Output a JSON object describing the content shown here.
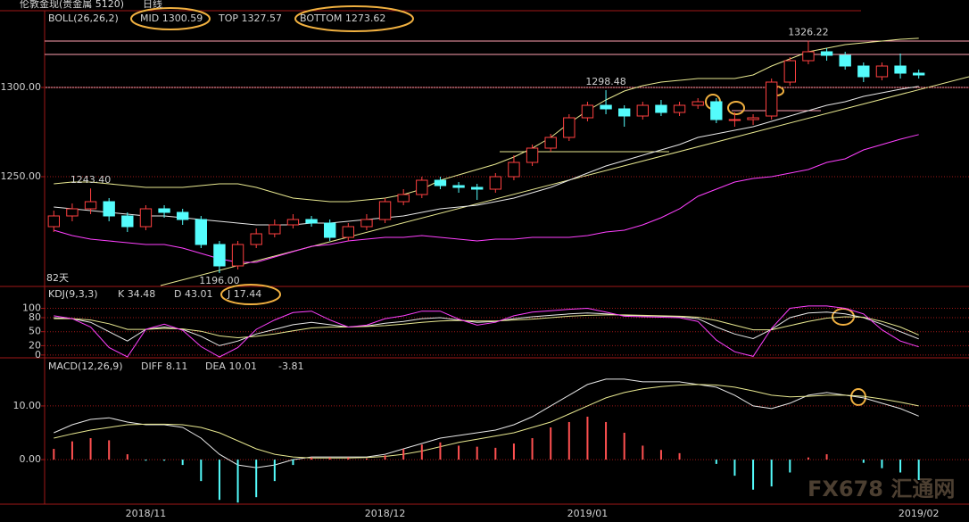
{
  "chart_data": [
    {
      "type": "candlestick",
      "title": "伦敦金现(贵金属 5120)",
      "period": "日线",
      "indicator": "BOLL(26,26,2)",
      "days_label": "82天",
      "categories": [
        null,
        null,
        null,
        null,
        null,
        "2018/11",
        null,
        null,
        null,
        null,
        null,
        null,
        null,
        null,
        null,
        null,
        null,
        null,
        "2018/12",
        null,
        null,
        null,
        null,
        null,
        null,
        null,
        null,
        null,
        null,
        "2019/01",
        null,
        null,
        null,
        null,
        null,
        null,
        null,
        null,
        null,
        null,
        null,
        null,
        null,
        null,
        null,
        null,
        null,
        "2019/02"
      ],
      "open": [
        1222,
        1228,
        1232,
        1236,
        1228,
        1222,
        1232,
        1230,
        1226,
        1212,
        1200,
        1212,
        1218,
        1223,
        1226,
        1224,
        1216,
        1222,
        1226,
        1236,
        1240,
        1248,
        1245,
        1244,
        1243,
        1250,
        1258,
        1266,
        1272,
        1283,
        1290,
        1288,
        1284,
        1290,
        1286,
        1290,
        1292,
        1282,
        1282,
        1284,
        1303,
        1315,
        1320,
        1318,
        1312,
        1306,
        1312,
        1308
      ],
      "high": [
        1231,
        1235,
        1243.4,
        1238,
        1230,
        1234,
        1234,
        1232,
        1228,
        1214,
        1214,
        1221,
        1226,
        1229,
        1228,
        1226,
        1224,
        1229,
        1238,
        1243,
        1250,
        1250,
        1247,
        1246,
        1252,
        1262,
        1268,
        1274,
        1285,
        1292,
        1298.48,
        1290,
        1292,
        1293,
        1292,
        1294,
        1294,
        1286,
        1285,
        1305,
        1317,
        1326.22,
        1322,
        1320,
        1314,
        1314,
        1319,
        1310
      ],
      "low": [
        1219,
        1225,
        1229,
        1225,
        1219,
        1220,
        1227,
        1223,
        1210,
        1196,
        1198,
        1210,
        1216,
        1221,
        1222,
        1214,
        1214,
        1220,
        1224,
        1234,
        1238,
        1243,
        1241,
        1237,
        1241,
        1248,
        1256,
        1264,
        1270,
        1281,
        1285,
        1278,
        1282,
        1284,
        1284,
        1288,
        1280,
        1278,
        1279,
        1282,
        1301,
        1313,
        1315,
        1310,
        1303,
        1304,
        1305,
        1305
      ],
      "close": [
        1228,
        1232,
        1236,
        1228,
        1222,
        1232,
        1230,
        1226,
        1212,
        1200,
        1212,
        1218,
        1223,
        1226,
        1224,
        1216,
        1222,
        1226,
        1236,
        1240,
        1248,
        1245,
        1244,
        1243,
        1250,
        1258,
        1266,
        1272,
        1283,
        1290,
        1288,
        1284,
        1290,
        1286,
        1290,
        1292,
        1282,
        1282,
        1283,
        1303,
        1315,
        1320,
        1318,
        1312,
        1306,
        1312,
        1308,
        1307
      ],
      "up_color": "#ff4040",
      "down_color": "#54fcfc",
      "extreme_labels": [
        "1326.22",
        "1298.48",
        "1243.40",
        "1196.00"
      ],
      "series": [
        {
          "name": "MID",
          "color": "#e8e8e8",
          "values": [
            1233,
            1232,
            1231,
            1230,
            1229,
            1228,
            1228,
            1227,
            1226,
            1225,
            1224,
            1223,
            1223,
            1223,
            1224,
            1224,
            1225,
            1226,
            1227,
            1228,
            1230,
            1232,
            1233,
            1234,
            1236,
            1238,
            1241,
            1244,
            1248,
            1252,
            1256,
            1259,
            1262,
            1265,
            1268,
            1272,
            1274,
            1276,
            1278,
            1281,
            1284,
            1287,
            1290,
            1292,
            1295,
            1297,
            1299,
            1300.59
          ]
        },
        {
          "name": "TOP",
          "color": "#e8e890",
          "values": [
            1246,
            1247,
            1247,
            1246,
            1245,
            1244,
            1244,
            1244,
            1245,
            1246,
            1246,
            1244,
            1241,
            1238,
            1237,
            1236,
            1236,
            1237,
            1238,
            1240,
            1243,
            1248,
            1251,
            1254,
            1257,
            1261,
            1266,
            1272,
            1280,
            1287,
            1293,
            1298,
            1301,
            1303,
            1304,
            1305,
            1305,
            1305,
            1307,
            1312,
            1316,
            1320,
            1322,
            1324,
            1325,
            1326,
            1327,
            1327.57
          ]
        },
        {
          "name": "BOTTOM",
          "color": "#ff40ff",
          "values": [
            1220,
            1217,
            1215,
            1214,
            1213,
            1212,
            1212,
            1210,
            1207,
            1204,
            1202,
            1202,
            1205,
            1208,
            1211,
            1212,
            1214,
            1215,
            1216,
            1216,
            1217,
            1216,
            1215,
            1214,
            1215,
            1215,
            1216,
            1216,
            1216,
            1217,
            1219,
            1220,
            1223,
            1227,
            1232,
            1239,
            1243,
            1247,
            1249,
            1250,
            1252,
            1254,
            1258,
            1260,
            1265,
            1268,
            1271,
            1273.62
          ]
        }
      ],
      "ylim": [
        1189,
        1343
      ],
      "yticks": [
        {
          "value": 1250,
          "label": "1250.00"
        },
        {
          "value": 1300,
          "label": "1300.00"
        }
      ],
      "grid": true
    },
    {
      "type": "line",
      "indicator": "KDJ(9,3,3)",
      "series": [
        {
          "name": "K",
          "color": "#e8e8e8",
          "values": [
            80,
            78,
            70,
            50,
            30,
            55,
            60,
            55,
            40,
            20,
            30,
            45,
            55,
            65,
            70,
            65,
            60,
            62,
            68,
            72,
            78,
            80,
            75,
            70,
            72,
            78,
            82,
            85,
            88,
            90,
            88,
            85,
            84,
            83,
            82,
            78,
            60,
            45,
            35,
            55,
            80,
            90,
            92,
            88,
            80,
            66,
            50,
            34.48
          ]
        },
        {
          "name": "D",
          "color": "#e8e890",
          "values": [
            78,
            78,
            75,
            67,
            55,
            55,
            57,
            56,
            51,
            41,
            37,
            40,
            45,
            52,
            58,
            60,
            60,
            61,
            63,
            66,
            70,
            73,
            74,
            73,
            73,
            75,
            77,
            80,
            83,
            85,
            86,
            86,
            85,
            84,
            83,
            81,
            74,
            64,
            54,
            54,
            63,
            72,
            79,
            82,
            81,
            72,
            60,
            43.01
          ]
        },
        {
          "name": "J",
          "color": "#ff40ff",
          "values": [
            84,
            78,
            60,
            16,
            -4,
            55,
            66,
            53,
            18,
            -4,
            16,
            55,
            75,
            91,
            94,
            75,
            60,
            64,
            78,
            84,
            94,
            94,
            77,
            64,
            70,
            84,
            92,
            95,
            98,
            100,
            92,
            83,
            82,
            81,
            80,
            72,
            32,
            7,
            -3,
            57,
            100,
            105,
            105,
            100,
            88,
            54,
            30,
            17.44
          ]
        }
      ],
      "ylim": [
        -6,
        145
      ],
      "yticks": [
        0,
        20,
        50,
        80,
        100
      ],
      "grid": true
    },
    {
      "type": "macd",
      "indicator": "MACD(12,26,9)",
      "series": [
        {
          "name": "DIFF",
          "color": "#e8e8e8",
          "style": "line",
          "values": [
            5,
            6.5,
            7.5,
            7.8,
            7,
            6.5,
            6.5,
            6,
            4,
            1,
            -1,
            -1.5,
            -1,
            0,
            0.5,
            0.5,
            0.5,
            0.5,
            1,
            2,
            3,
            4,
            4.5,
            5,
            5.5,
            6.5,
            8,
            10,
            12,
            14,
            15,
            15,
            14.5,
            14.5,
            14.5,
            14,
            13.5,
            12,
            10,
            9.5,
            10.5,
            12,
            12.5,
            12,
            11.5,
            10.5,
            9.5,
            8.11
          ]
        },
        {
          "name": "DEA",
          "color": "#e8e890",
          "style": "line",
          "values": [
            4,
            4.8,
            5.5,
            6,
            6.5,
            6.6,
            6.6,
            6.5,
            6,
            5,
            3.5,
            2,
            1,
            0.5,
            0.3,
            0.3,
            0.3,
            0.4,
            0.6,
            1,
            1.6,
            2.4,
            3.2,
            3.8,
            4.4,
            5,
            6,
            7,
            8.5,
            10,
            11.5,
            12.5,
            13.2,
            13.6,
            13.9,
            14,
            13.9,
            13.5,
            12.8,
            12,
            11.7,
            11.8,
            12,
            12,
            11.8,
            11.3,
            10.7,
            10.01
          ]
        },
        {
          "name": "MACD",
          "color": "#ff5050",
          "negative_color": "#54fcfc",
          "style": "bar",
          "values": [
            2,
            3.4,
            4,
            3.6,
            1,
            -0.2,
            -0.2,
            -1,
            -4,
            -7.5,
            -8,
            -7,
            -4,
            -1,
            0.4,
            0.4,
            0.4,
            0.2,
            0.8,
            2,
            2.8,
            3.2,
            2.6,
            2.4,
            2.2,
            3,
            4,
            6,
            7,
            8,
            7,
            5,
            2.6,
            1.8,
            1.2,
            0,
            -0.8,
            -3,
            -5.6,
            -5,
            -2.4,
            0.4,
            1,
            0,
            -0.6,
            -1.6,
            -2.4,
            -3.81
          ]
        }
      ],
      "ylim": [
        -8.3,
        18.8
      ],
      "yticks": [
        {
          "value": 0,
          "label": "0.00"
        },
        {
          "value": 10,
          "label": "10.00"
        }
      ],
      "grid": true,
      "watermark": "FX678 汇通网"
    }
  ]
}
